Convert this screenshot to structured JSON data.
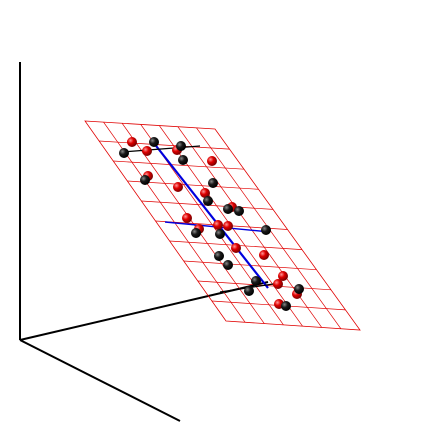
{
  "scene": {
    "background": "#ffffff",
    "axis_color": "#000000",
    "grid_color": "#e00000",
    "line_color": "#0000dd",
    "sphere_red": "#e00000",
    "sphere_black": "#111111",
    "grid_rows": 10,
    "grid_cols": 7
  },
  "atoms": [
    {
      "kind": "red"
    },
    {
      "kind": "black"
    },
    {
      "kind": "red"
    },
    {
      "kind": "black"
    },
    {
      "kind": "red"
    },
    {
      "kind": "black"
    },
    {
      "kind": "red"
    },
    {
      "kind": "black"
    },
    {
      "kind": "red"
    },
    {
      "kind": "black"
    },
    {
      "kind": "red"
    },
    {
      "kind": "black"
    },
    {
      "kind": "red"
    },
    {
      "kind": "black"
    },
    {
      "kind": "red"
    },
    {
      "kind": "black"
    },
    {
      "kind": "red"
    },
    {
      "kind": "black"
    },
    {
      "kind": "red"
    },
    {
      "kind": "black"
    },
    {
      "kind": "red"
    },
    {
      "kind": "black"
    },
    {
      "kind": "red"
    },
    {
      "kind": "black"
    },
    {
      "kind": "red"
    },
    {
      "kind": "black"
    },
    {
      "kind": "red"
    },
    {
      "kind": "black"
    },
    {
      "kind": "red"
    },
    {
      "kind": "black"
    },
    {
      "kind": "red"
    },
    {
      "kind": "black"
    },
    {
      "kind": "red"
    },
    {
      "kind": "black"
    },
    {
      "kind": "red"
    },
    {
      "kind": "black"
    }
  ]
}
